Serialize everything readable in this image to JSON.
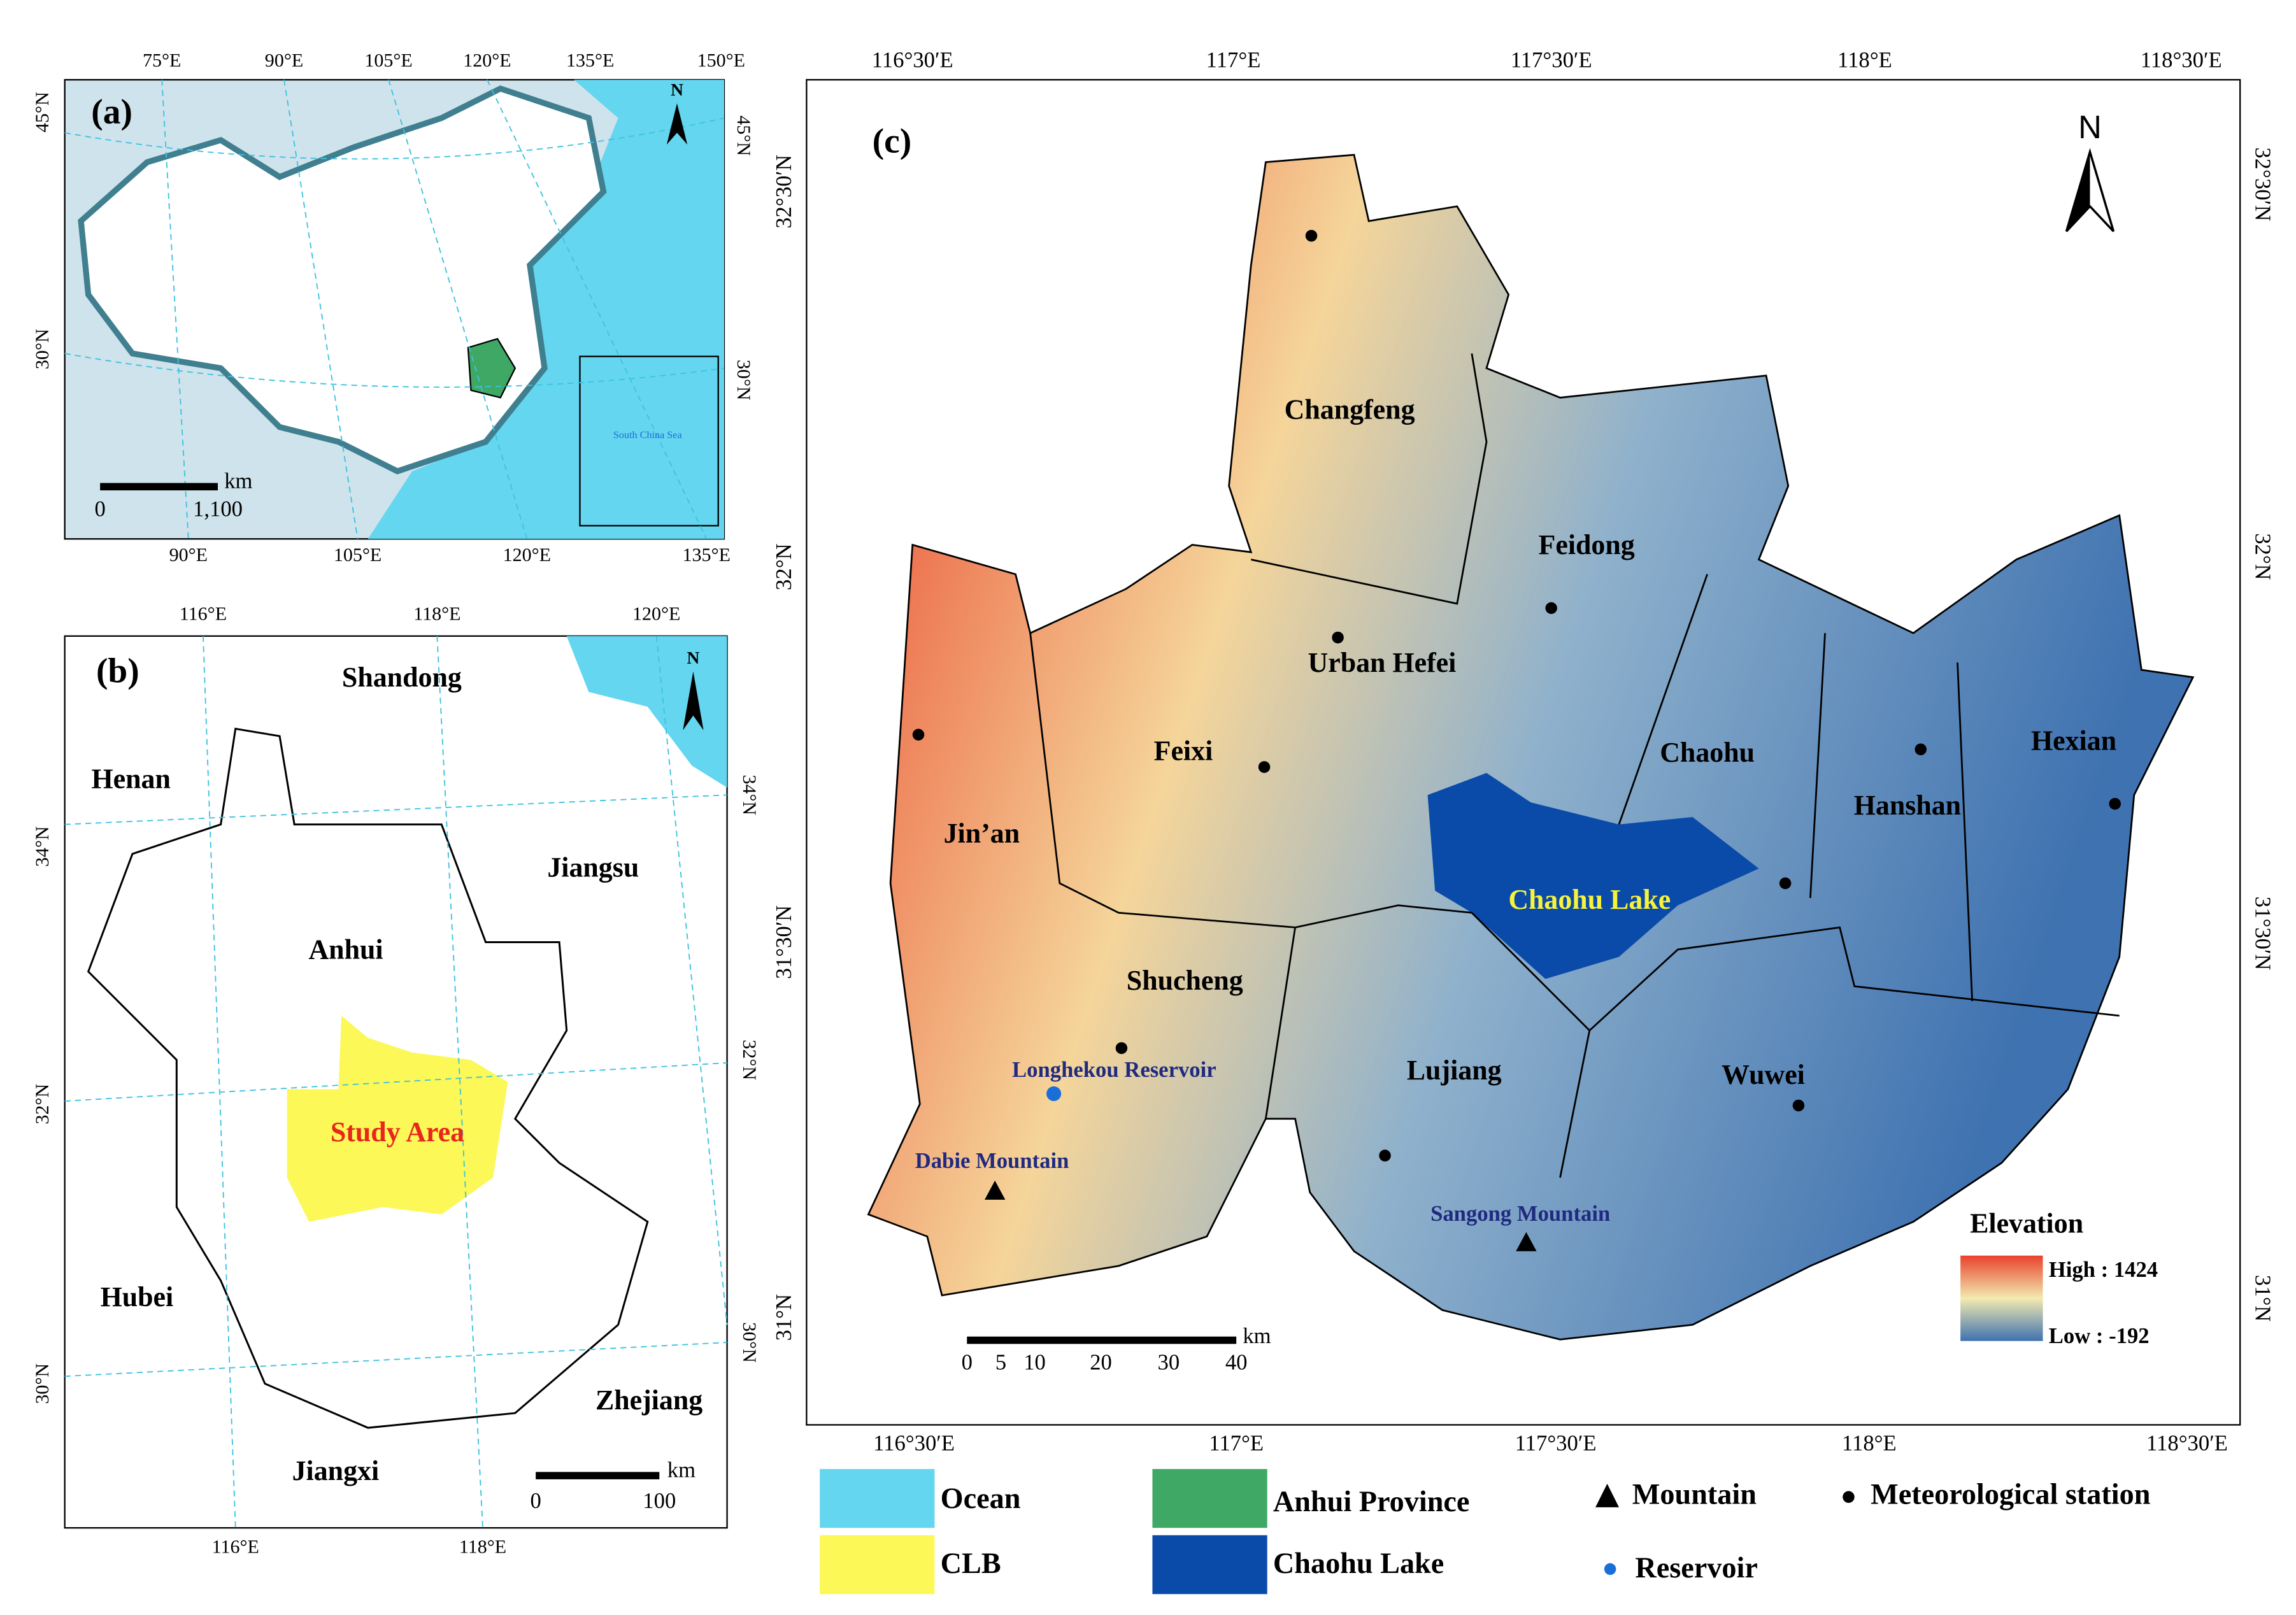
{
  "panel_a": {
    "label": "(a)",
    "north": "N",
    "top_ticks": [
      "75°E",
      "90°E",
      "105°E",
      "120°E",
      "135°E",
      "150°E"
    ],
    "bottom_ticks": [
      "90°E",
      "105°E",
      "120°E",
      "135°E"
    ],
    "left_ticks": [
      "45°N",
      "30°N"
    ],
    "right_ticks": [
      "45°N",
      "30°N"
    ],
    "inset_label": "South China Sea",
    "scale": {
      "unit": "km",
      "labels": [
        "0",
        "1,100"
      ]
    }
  },
  "panel_b": {
    "label": "(b)",
    "north": "N",
    "top_ticks": [
      "116°E",
      "118°E",
      "120°E"
    ],
    "bottom_ticks": [
      "116°E",
      "118°E"
    ],
    "left_ticks": [
      "34°N",
      "32°N",
      "30°N"
    ],
    "right_ticks": [
      "34°N",
      "32°N",
      "30°N"
    ],
    "places": [
      "Shandong",
      "Henan",
      "Jiangsu",
      "Anhui",
      "Hubei",
      "Zhejiang",
      "Jiangxi"
    ],
    "study_area": "Study Area",
    "scale": {
      "unit": "km",
      "labels": [
        "0",
        "100"
      ]
    }
  },
  "panel_c": {
    "label": "(c)",
    "north": "N",
    "top_ticks": [
      "116°30′E",
      "117°E",
      "117°30′E",
      "118°E",
      "118°30′E"
    ],
    "bottom_ticks": [
      "116°30′E",
      "117°E",
      "117°30′E",
      "118°E",
      "118°30′E"
    ],
    "left_ticks": [
      "32°30′N",
      "32°N",
      "31°30′N",
      "31°N"
    ],
    "right_ticks": [
      "32°30′N",
      "32°N",
      "31°30′N",
      "31°N"
    ],
    "counties": [
      "Changfeng",
      "Feidong",
      "Urban Hefei",
      "Feixi",
      "Chaohu",
      "Hanshan",
      "Hexian",
      "Jin’an",
      "Shucheng",
      "Lujiang",
      "Wuwei"
    ],
    "lake": "Chaohu Lake",
    "reservoir": "Longhekou Reservoir",
    "mountains": [
      "Dabie Mountain",
      "Sangong Mountain"
    ],
    "elevation": {
      "title": "Elevation",
      "high": "High : 1424",
      "low": "Low : -192"
    },
    "scale": {
      "unit": "km",
      "labels": [
        "0",
        "5",
        "10",
        "20",
        "30",
        "40"
      ]
    }
  },
  "legend": [
    "Ocean",
    "CLB",
    "Anhui Province",
    "Chaohu Lake",
    "Mountain",
    "Reservoir",
    "Meteorological station"
  ]
}
